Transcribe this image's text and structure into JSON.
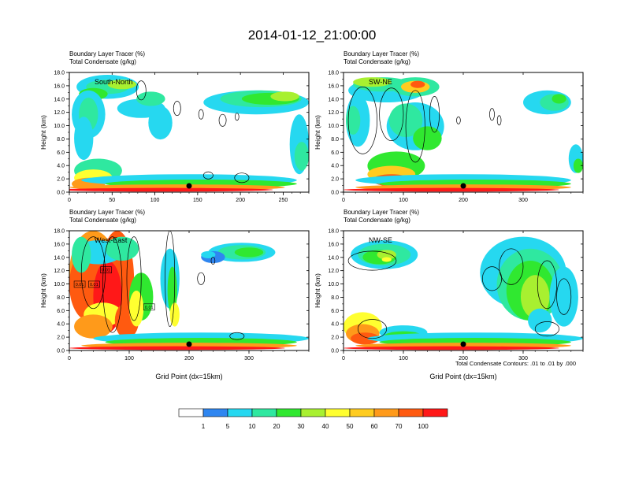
{
  "figure": {
    "title": "2014-01-12_21:00:00",
    "note": "Total Condensate Contours: .01 to .01 by .000"
  },
  "colorbar": {
    "colors": [
      "#ffffff",
      "#2f86f0",
      "#26d8f0",
      "#2fe8a0",
      "#30e830",
      "#a8f030",
      "#ffff30",
      "#ffcc20",
      "#ff9a1a",
      "#ff5a10",
      "#ff1818"
    ],
    "labels": [
      "1",
      "5",
      "10",
      "20",
      "30",
      "40",
      "50",
      "60",
      "70",
      "100"
    ]
  },
  "chart_data": [
    {
      "type": "heatmap",
      "cross_section": "South-North",
      "title_line1": "Boundary Layer Tracer   (%)",
      "title_line2": "Total Condensate   (g/kg)",
      "ylabel": "Height (km)",
      "xlabel": "",
      "xlim": [
        0,
        280
      ],
      "ylim": [
        0,
        18
      ],
      "xticks": [
        0,
        50,
        100,
        150,
        200,
        250
      ],
      "yticks": [
        "0.0",
        "2.0",
        "4.0",
        "6.0",
        "8.0",
        "10.0",
        "12.0",
        "14.0",
        "16.0",
        "18.0"
      ],
      "marker_x": 140,
      "contour_labels": []
    },
    {
      "type": "heatmap",
      "cross_section": "SW-NE",
      "title_line1": "Boundary Layer Tracer   (%)",
      "title_line2": "Total Condensate   (g/kg)",
      "ylabel": "Height (km)",
      "xlabel": "",
      "xlim": [
        0,
        400
      ],
      "ylim": [
        0,
        18
      ],
      "xticks": [
        0,
        100,
        200,
        300
      ],
      "yticks": [
        "0.0",
        "2.0",
        "4.0",
        "6.0",
        "8.0",
        "10.0",
        "12.0",
        "14.0",
        "16.0",
        "18.0"
      ],
      "marker_x": 200,
      "contour_labels": []
    },
    {
      "type": "heatmap",
      "cross_section": "West-East",
      "title_line1": "Boundary Layer Tracer   (%)",
      "title_line2": "Total Condensate   (g/kg)",
      "ylabel": "Height (km)",
      "xlabel": "Grid Point (dx=15km)",
      "xlim": [
        0,
        400
      ],
      "ylim": [
        0,
        18
      ],
      "xticks": [
        0,
        100,
        200,
        300
      ],
      "yticks": [
        "0.0",
        "2.0",
        "4.0",
        "6.0",
        "8.0",
        "10.0",
        "12.0",
        "14.0",
        "16.0",
        "18.0"
      ],
      "marker_x": 200,
      "contour_labels": [
        "0.01",
        "0.01",
        "0.01",
        "0.01"
      ]
    },
    {
      "type": "heatmap",
      "cross_section": "NW-SE",
      "title_line1": "Boundary Layer Tracer   (%)",
      "title_line2": "Total Condensate   (g/kg)",
      "ylabel": "Height (km)",
      "xlabel": "Grid Point (dx=15km)",
      "xlim": [
        0,
        400
      ],
      "ylim": [
        0,
        18
      ],
      "xticks": [
        0,
        100,
        200,
        300
      ],
      "yticks": [
        "0.0",
        "2.0",
        "4.0",
        "6.0",
        "8.0",
        "10.0",
        "12.0",
        "14.0",
        "16.0",
        "18.0"
      ],
      "marker_x": 200,
      "contour_labels": []
    }
  ]
}
